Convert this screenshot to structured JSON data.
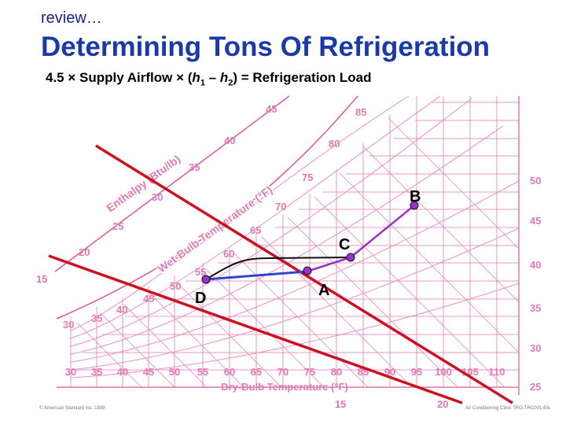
{
  "header": {
    "kicker": "review…",
    "title": "Determining Tons Of Refrigeration",
    "formula": {
      "part1": "4.5 × Supply Airflow × (",
      "h": "h",
      "sub1": "1",
      "dash": " – ",
      "sub2": "2",
      "part2": ") = Refrigeration Load"
    }
  },
  "chart": {
    "x_axis_title": "Dry-Bulb Temperature (°F)",
    "x_ticks": [
      "30",
      "35",
      "40",
      "45",
      "50",
      "55",
      "60",
      "65",
      "70",
      "75",
      "80",
      "85",
      "90",
      "95",
      "100",
      "105",
      "110"
    ],
    "enthalpy_title": "Enthalpy (Btu/lb)",
    "enthalpy_ticks": [
      "15",
      "20",
      "25",
      "30",
      "35",
      "40",
      "45"
    ],
    "wetbulb_title": "Wet-Bulb Temperature (°F)",
    "wetbulb_ticks": [
      "30",
      "35",
      "40",
      "45",
      "50",
      "55",
      "60",
      "65",
      "70",
      "75",
      "80",
      "85"
    ],
    "right_ticks": [
      "50",
      "45",
      "40",
      "35",
      "30",
      "25",
      "20",
      "15"
    ],
    "points": {
      "A": "A",
      "B": "B",
      "C": "C",
      "D": "D"
    },
    "colors": {
      "grid": "#e27ab4",
      "primary": "#cc1122",
      "process": "#9933cc",
      "supply": "#3344cc"
    }
  },
  "footer": {
    "left": "© American Standard Inc. 1999",
    "right": "Air Conditioning Clinic TRG-TRC001-EN"
  }
}
